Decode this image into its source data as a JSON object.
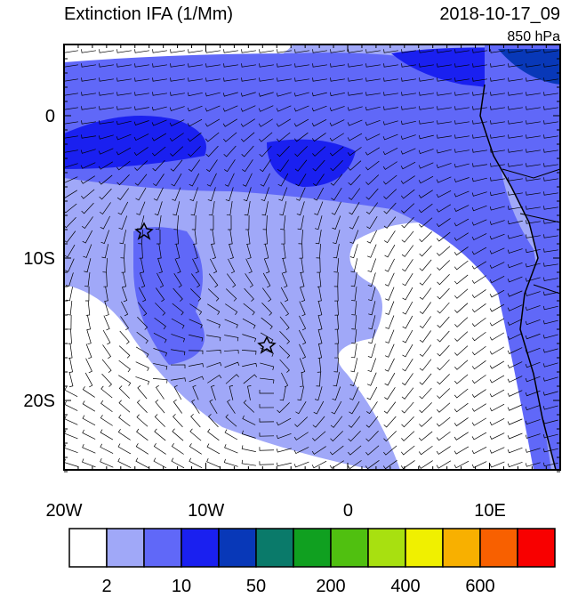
{
  "header": {
    "title": "Extinction IFA (1/Mm)",
    "date": "2018-10-17_09",
    "level": "850 hPa"
  },
  "map": {
    "lat_labels": [
      "0",
      "10S",
      "20S"
    ],
    "lon_labels": [
      "20W",
      "10W",
      "0",
      "10E"
    ]
  },
  "colorbar": {
    "colors": [
      "#ffffff",
      "#a0a8f8",
      "#6068f8",
      "#1a20f0",
      "#0838b8",
      "#0a7a6a",
      "#10a020",
      "#50c010",
      "#a8e010",
      "#f0f000",
      "#f8b000",
      "#f86000",
      "#f80000"
    ],
    "labels": [
      "2",
      "10",
      "50",
      "200",
      "400",
      "600"
    ]
  }
}
